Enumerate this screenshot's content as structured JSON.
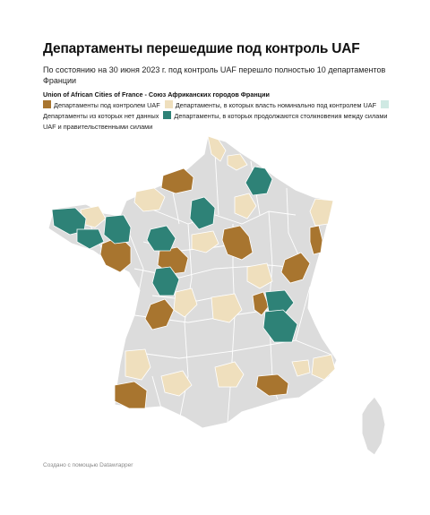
{
  "title": "Департаменты перешедшие под контроль UAF",
  "subtitle": "По состоянию на 30 июня 2023 г. под контроль UAF перешло полностью 10 департаментов Франции",
  "legend_title": "Union of African Cities of France - Союз Африканских городов Франции",
  "legend": [
    {
      "label": "Департаменты под контролем UAF",
      "color": "#a8752f"
    },
    {
      "label": "Департаменты, в которых власть номинально под контролем UAF",
      "color": "#efdfbd"
    },
    {
      "label": "Департаменты из которых нет данных",
      "color": "#cfe9e3"
    },
    {
      "label": "Департаменты, в которых продолжаются столкновения между силами UAF и правительственными силами",
      "color": "#2e8277"
    }
  ],
  "colors": {
    "base": "#dcdcdc",
    "border": "#ffffff",
    "controlled": "#a8752f",
    "nominal": "#efdfbd",
    "clashes": "#2e8277"
  },
  "footer": "Создано с помощью Datawrapper"
}
